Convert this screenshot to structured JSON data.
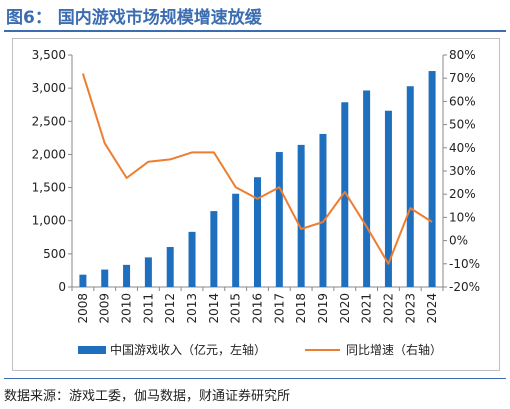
{
  "page": {
    "title": "图6： 国内游戏市场规模增速放缓",
    "source": "数据来源：游戏工委，伽马数据，财通证券研究所"
  },
  "chart_data": {
    "type": "bar+line",
    "categories": [
      "2008",
      "2009",
      "2010",
      "2011",
      "2012",
      "2013",
      "2014",
      "2015",
      "2016",
      "2017",
      "2018",
      "2019",
      "2020",
      "2021",
      "2022",
      "2023",
      "2024"
    ],
    "series": [
      {
        "name": "中国游戏收入（亿元，左轴）",
        "type": "bar",
        "axis": "left",
        "color": "#1f6fbf",
        "values": [
          186,
          263,
          334,
          447,
          603,
          832,
          1145,
          1407,
          1656,
          2036,
          2144,
          2309,
          2787,
          2965,
          2659,
          3029,
          3258
        ]
      },
      {
        "name": "同比增速（右轴）",
        "type": "line",
        "axis": "right",
        "color": "#ed7d31",
        "values": [
          72,
          42,
          27,
          34,
          35,
          38,
          38,
          23,
          18,
          23,
          5,
          8,
          21,
          6,
          -10,
          14,
          8
        ]
      }
    ],
    "y_left": {
      "min": 0,
      "max": 3500,
      "ticks": [
        "0",
        "500",
        "1,000",
        "1,500",
        "2,000",
        "2,500",
        "3,000",
        "3,500"
      ]
    },
    "y_right": {
      "min": -20,
      "max": 80,
      "ticks": [
        "-20%",
        "-10%",
        "0%",
        "10%",
        "20%",
        "30%",
        "40%",
        "50%",
        "60%",
        "70%",
        "80%"
      ]
    },
    "grid": false,
    "legend_position": "bottom"
  }
}
